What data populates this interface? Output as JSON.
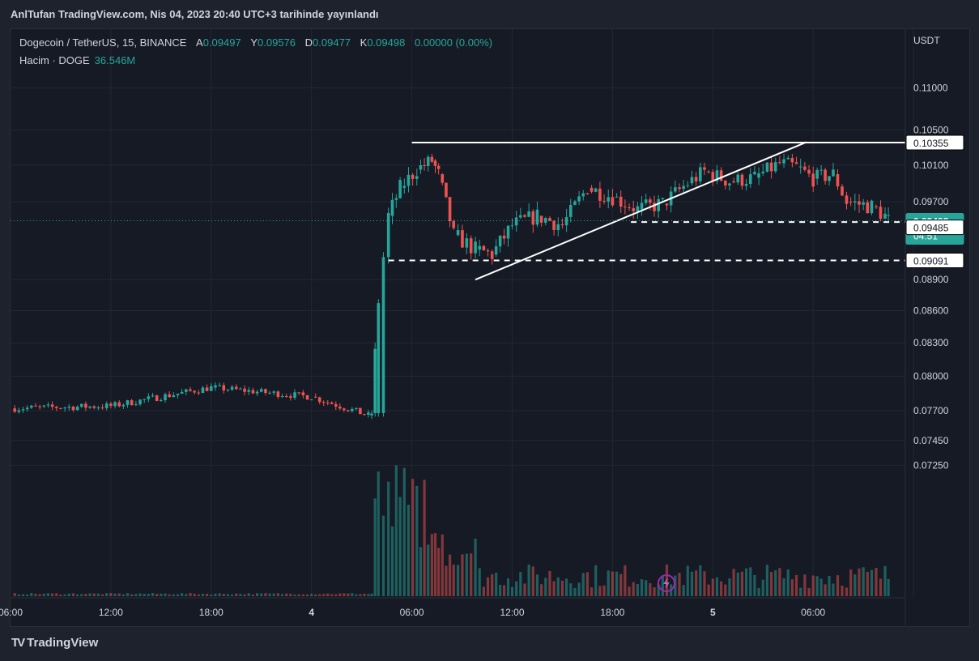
{
  "header": {
    "published": "AnlTufan TradingView.com, Nis 04, 2023 20:40 UTC+3 tarihinde yayınlandı"
  },
  "legend": {
    "symbol": "Dogecoin / TetherUS, 15, BINANCE",
    "open_key": "A",
    "open": "0.09497",
    "high_key": "Y",
    "high": "0.09576",
    "low_key": "D",
    "low": "0.09477",
    "close_key": "K",
    "close": "0.09498",
    "change": "0.00000 (0.00%)",
    "volume_label": "Hacim · DOGE",
    "volume_value": "36.546M"
  },
  "axis": {
    "unit": "USDT"
  },
  "footer": {
    "brand": "TradingView"
  },
  "colors": {
    "up": "#26a69a",
    "down": "#ef5350",
    "background": "#161a25",
    "grid": "#232733",
    "drawing": "#ffffff"
  },
  "chart_data": {
    "type": "candlestick",
    "title": "Dogecoin / TetherUS, 15, BINANCE",
    "y_scale": "log",
    "y_ticks": [
      "0.11000",
      "0.10500",
      "0.10100",
      "0.09700",
      "0.08900",
      "0.08600",
      "0.08300",
      "0.08000",
      "0.07700",
      "0.07450",
      "0.07250"
    ],
    "x_ticks": [
      "06:00",
      "12:00",
      "18:00",
      "4",
      "06:00",
      "12:00",
      "18:00",
      "5",
      "06:00"
    ],
    "ylim": [
      0.0712,
      0.114
    ],
    "price_labels": {
      "current": "0.09498",
      "countdown": "04:51",
      "level_top": "0.10355",
      "level_mid": "0.09485",
      "level_low": "0.09091"
    },
    "levels": [
      {
        "name": "resistance",
        "value": 0.10355,
        "style": "solid",
        "label": "0.10355"
      },
      {
        "name": "support-1",
        "value": 0.09485,
        "style": "dashed",
        "label": "0.09485"
      },
      {
        "name": "support-2",
        "value": 0.09091,
        "style": "dashed",
        "label": "0.09091"
      }
    ],
    "trendline": {
      "from": {
        "hour": 27.8,
        "price": 0.089
      },
      "to": {
        "hour": 47.6,
        "price": 0.1036
      }
    },
    "series": [
      {
        "start": [
          0,
          0.0772
        ],
        "pts": [
          [
            6,
            0.0774
          ],
          [
            12,
            0.079
          ],
          [
            18,
            0.0782
          ],
          [
            21.4,
            0.0766
          ],
          [
            21.6,
            0.0768
          ]
        ],
        "vol": 4
      },
      {
        "start": [
          21.6,
          0.0768
        ],
        "pts": [
          [
            22.0,
            0.087
          ],
          [
            22.6,
            0.0955
          ],
          [
            23.3,
            0.0985
          ],
          [
            24.3,
            0.1005
          ],
          [
            25.2,
            0.1015
          ],
          [
            25.6,
            0.1
          ],
          [
            26.5,
            0.0935
          ],
          [
            27.8,
            0.092
          ],
          [
            28.8,
            0.0915
          ],
          [
            30.0,
            0.0945
          ],
          [
            31.5,
            0.0955
          ],
          [
            33.0,
            0.0945
          ],
          [
            34.5,
            0.0985
          ],
          [
            36.0,
            0.0975
          ],
          [
            37.5,
            0.0962
          ],
          [
            39.0,
            0.0968
          ],
          [
            40.5,
            0.099
          ],
          [
            41.5,
            0.1003
          ],
          [
            43.0,
            0.0992
          ],
          [
            44.5,
            0.0996
          ],
          [
            46.0,
            0.1012
          ],
          [
            47.0,
            0.1008
          ],
          [
            48.0,
            0.0995
          ],
          [
            49.2,
            0.1
          ],
          [
            50.0,
            0.097
          ],
          [
            51.5,
            0.0965
          ],
          [
            52.3,
            0.0955
          ],
          [
            52.5,
            0.095
          ]
        ],
        "vol": 10
      }
    ]
  }
}
